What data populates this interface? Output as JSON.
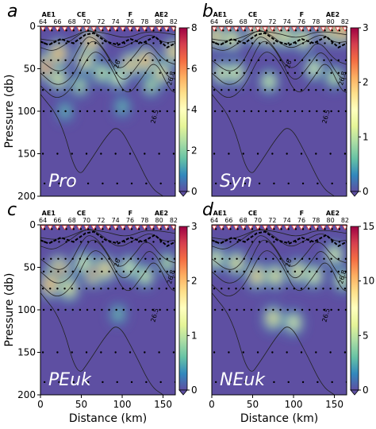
{
  "chart_data": [
    {
      "type": "heatmap",
      "letter": "a",
      "name": "Pro",
      "colorbar": {
        "min": 0,
        "max": 8,
        "ticks": [
          0,
          2,
          4,
          6,
          8
        ]
      },
      "hotspots": [
        {
          "x": 8,
          "y": 48,
          "value": 7.0
        },
        {
          "x": 22,
          "y": 32,
          "value": 6.0
        },
        {
          "x": 22,
          "y": 62,
          "value": 4.5
        },
        {
          "x": 55,
          "y": 40,
          "value": 5.0
        },
        {
          "x": 62,
          "y": 18,
          "value": 6.0
        },
        {
          "x": 75,
          "y": 55,
          "value": 3.5
        },
        {
          "x": 95,
          "y": 60,
          "value": 4.0
        },
        {
          "x": 110,
          "y": 45,
          "value": 5.5
        },
        {
          "x": 128,
          "y": 40,
          "value": 6.0
        },
        {
          "x": 148,
          "y": 55,
          "value": 5.0
        },
        {
          "x": 163,
          "y": 30,
          "value": 5.5
        },
        {
          "x": 48,
          "y": 70,
          "value": 3.0
        },
        {
          "x": 135,
          "y": 70,
          "value": 3.0
        },
        {
          "x": 100,
          "y": 95,
          "value": 2.0
        },
        {
          "x": 30,
          "y": 100,
          "value": 2.0
        }
      ]
    },
    {
      "type": "heatmap",
      "letter": "b",
      "name": "Syn",
      "colorbar": {
        "min": 0,
        "max": 3,
        "ticks": [
          0,
          1,
          2,
          3
        ]
      },
      "hotspots": [
        {
          "x": 5,
          "y": 12,
          "value": 2.0
        },
        {
          "x": 25,
          "y": 15,
          "value": 1.8
        },
        {
          "x": 55,
          "y": 8,
          "value": 2.0
        },
        {
          "x": 72,
          "y": 10,
          "value": 2.2
        },
        {
          "x": 90,
          "y": 12,
          "value": 1.8
        },
        {
          "x": 112,
          "y": 15,
          "value": 1.8
        },
        {
          "x": 145,
          "y": 4,
          "value": 2.8
        },
        {
          "x": 160,
          "y": 5,
          "value": 2.6
        },
        {
          "x": 12,
          "y": 55,
          "value": 1.6
        },
        {
          "x": 30,
          "y": 55,
          "value": 1.6
        },
        {
          "x": 70,
          "y": 65,
          "value": 1.4
        },
        {
          "x": 125,
          "y": 50,
          "value": 1.5
        },
        {
          "x": 150,
          "y": 60,
          "value": 1.3
        }
      ]
    },
    {
      "type": "heatmap",
      "letter": "c",
      "name": "PEuk",
      "colorbar": {
        "min": 0,
        "max": 3,
        "ticks": [
          0,
          1,
          2,
          3
        ]
      },
      "hotspots": [
        {
          "x": 22,
          "y": 55,
          "value": 3.0
        },
        {
          "x": 12,
          "y": 70,
          "value": 2.3
        },
        {
          "x": 35,
          "y": 75,
          "value": 1.8
        },
        {
          "x": 65,
          "y": 55,
          "value": 2.6
        },
        {
          "x": 80,
          "y": 52,
          "value": 2.0
        },
        {
          "x": 52,
          "y": 45,
          "value": 1.5
        },
        {
          "x": 108,
          "y": 50,
          "value": 1.5
        },
        {
          "x": 128,
          "y": 60,
          "value": 1.4
        },
        {
          "x": 155,
          "y": 45,
          "value": 1.2
        },
        {
          "x": 95,
          "y": 105,
          "value": 0.8
        }
      ]
    },
    {
      "type": "heatmap",
      "letter": "d",
      "name": "NEuk",
      "colorbar": {
        "min": 0,
        "max": 15,
        "ticks": [
          0,
          5,
          10,
          15
        ]
      },
      "hotspots": [
        {
          "x": 5,
          "y": 40,
          "value": 8
        },
        {
          "x": 30,
          "y": 45,
          "value": 9
        },
        {
          "x": 55,
          "y": 60,
          "value": 10
        },
        {
          "x": 75,
          "y": 110,
          "value": 9
        },
        {
          "x": 78,
          "y": 60,
          "value": 9
        },
        {
          "x": 100,
          "y": 115,
          "value": 8
        },
        {
          "x": 105,
          "y": 55,
          "value": 9
        },
        {
          "x": 125,
          "y": 60,
          "value": 8
        },
        {
          "x": 150,
          "y": 35,
          "value": 8
        },
        {
          "x": 160,
          "y": 65,
          "value": 7
        }
      ]
    }
  ],
  "axes": {
    "xlabel": "Distance (km)",
    "ylabel": "Pressure (db)",
    "xlim": [
      0,
      165
    ],
    "ylim": [
      200,
      0
    ],
    "xticks": [
      "0",
      "50",
      "100",
      "150"
    ],
    "yticks": [
      "0",
      "50",
      "100",
      "150",
      "200"
    ]
  },
  "stations": [
    "64",
    "66",
    "68",
    "70",
    "72",
    "74",
    "76",
    "78",
    "80",
    "82"
  ],
  "eddy_labels": [
    {
      "text": "AE1",
      "x": 10
    },
    {
      "text": "CE",
      "x": 50
    },
    {
      "text": "F",
      "x": 110
    },
    {
      "text": "AE2",
      "x": 148
    }
  ],
  "contour_labels": [
    "26.5",
    "26.8",
    "26",
    "26.5",
    "26.8"
  ],
  "colors": {
    "background": "#5e4fa2",
    "colormap": "Spectral_r"
  }
}
